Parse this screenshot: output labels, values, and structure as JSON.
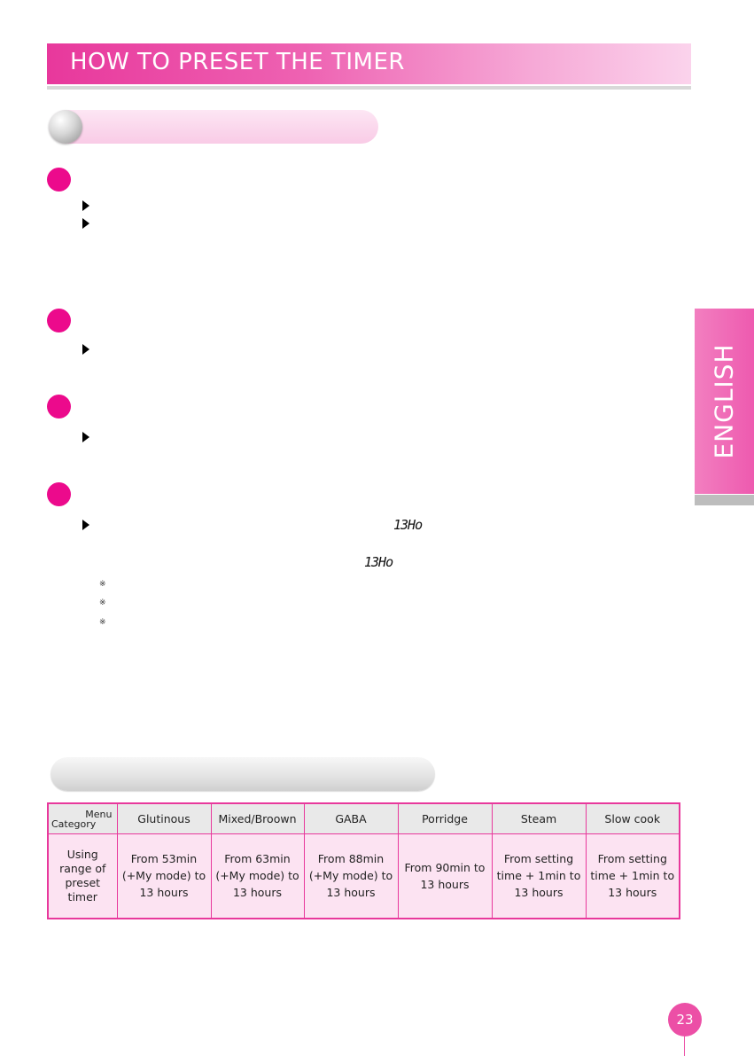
{
  "header": {
    "title": "HOW TO PRESET THE TIMER"
  },
  "side_tab": {
    "label": "ENGLISH"
  },
  "lcd_displays": {
    "first": "13Ho",
    "second": "13Ho"
  },
  "notes": {
    "mark": "※"
  },
  "table": {
    "corner": {
      "menu": "Menu",
      "category": "Category"
    },
    "columns": [
      "Glutinous",
      "Mixed/Broown",
      "GABA",
      "Porridge",
      "Steam",
      "Slow cook"
    ],
    "row_header": "Using range of preset timer",
    "cells": [
      "From 53min (+My mode) to 13 hours",
      "From 63min (+My mode) to 13 hours",
      "From 88min (+My mode) to 13 hours",
      "From 90min to 13 hours",
      "From setting time + 1min to 13 hours",
      "From setting time + 1min to 13 hours"
    ]
  },
  "page": {
    "number": "23"
  },
  "colors": {
    "accent": "#ec0a8c",
    "banner_start": "#e8389c",
    "banner_end": "#fbd3ec",
    "table_border": "#e8389c",
    "table_body_bg": "#fce3f2",
    "table_head_bg": "#e9e9e9"
  }
}
